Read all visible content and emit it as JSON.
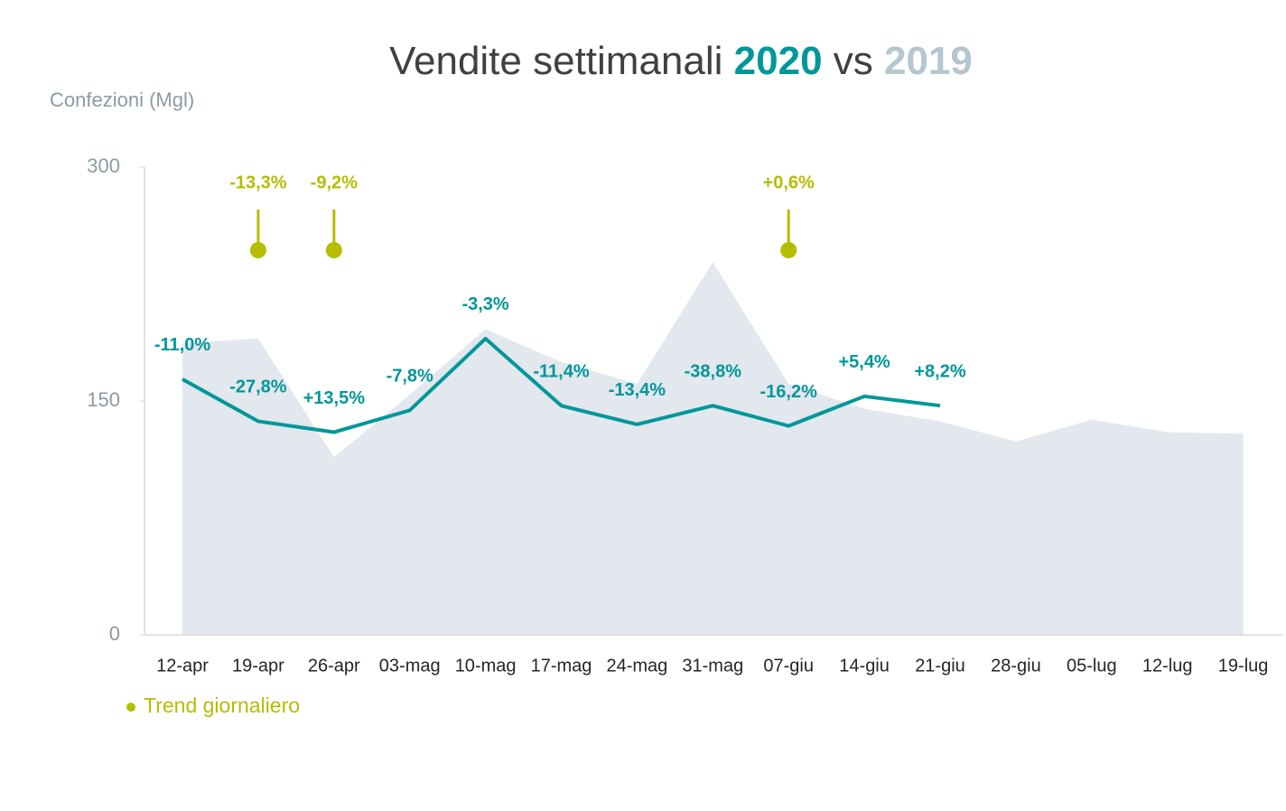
{
  "chart_data": {
    "type": "line",
    "title": "Vendite settimanali",
    "title_joiner": "vs",
    "y_label": "Confezioni (Mgl)",
    "categories": [
      "12-apr",
      "19-apr",
      "26-apr",
      "03-mag",
      "10-mag",
      "17-mag",
      "24-mag",
      "31-mag",
      "07-giu",
      "14-giu",
      "21-giu",
      "28-giu",
      "05-lug",
      "12-lug",
      "19-lug"
    ],
    "ylim": [
      0,
      300
    ],
    "yticks": [
      0,
      150,
      300
    ],
    "grid": false,
    "series": [
      {
        "name": "2020",
        "color": "#00979a",
        "style": "line",
        "values": [
          164,
          137,
          130,
          144,
          190,
          147,
          135,
          147,
          134,
          153,
          147,
          null,
          null,
          null,
          null
        ],
        "annotations": [
          "-11,0%",
          "-27,8%",
          "+13,5%",
          "-7,8%",
          "-3,3%",
          "-11,4%",
          "-13,4%",
          "-38,8%",
          "-16,2%",
          "+5,4%",
          "+8,2%",
          null,
          null,
          null,
          null
        ]
      },
      {
        "name": "2019",
        "color": "#e3e7ee",
        "title_color": "#b4c6cf",
        "style": "area",
        "values": [
          187,
          190,
          114,
          154,
          196,
          175,
          161,
          239,
          161,
          145,
          137,
          124,
          138,
          130,
          129
        ]
      }
    ],
    "markers": {
      "name": "Trend giornaliero",
      "color": "#b5bd00",
      "points": [
        {
          "category": "19-apr",
          "label": "-13,3%"
        },
        {
          "category": "26-apr",
          "label": "-9,2%"
        },
        {
          "category": "07-giu",
          "label": "+0,6%"
        }
      ]
    }
  }
}
